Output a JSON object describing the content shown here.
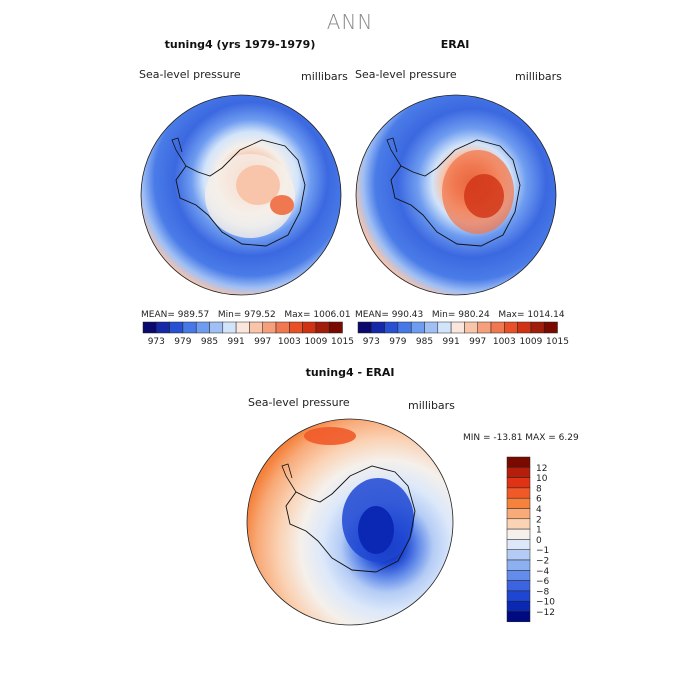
{
  "title": "ANN",
  "panels": [
    {
      "title": "tuning4 (yrs 1979-1979)",
      "variable": "Sea-level pressure",
      "units": "millibars",
      "stats": {
        "mean_label": "MEAN=",
        "mean": "989.57",
        "min_label": "Min=",
        "min": "979.52",
        "max_label": "Max=",
        "max": "1006.01"
      }
    },
    {
      "title": "ERAI",
      "variable": "Sea-level pressure",
      "units": "millibars",
      "stats": {
        "mean_label": "MEAN=",
        "mean": "990.43",
        "min_label": "Min=",
        "min": "980.24",
        "max_label": "Max=",
        "max": "1014.14"
      }
    },
    {
      "title": "tuning4 - ERAI",
      "variable": "Sea-level pressure",
      "units": "millibars",
      "stats_text": "MIN = -13.81 MAX =   6.29"
    }
  ],
  "colorbar_top": {
    "colors": [
      "#0a0a6e",
      "#1428a8",
      "#2850d2",
      "#4678e6",
      "#6e9cf0",
      "#a0c0f5",
      "#d2e4fa",
      "#fae6dc",
      "#f8c4aa",
      "#f5a07a",
      "#f07850",
      "#e85028",
      "#d03214",
      "#a01e0a",
      "#780a00"
    ],
    "tick_labels": [
      "973",
      "979",
      "985",
      "991",
      "997",
      "1003",
      "1009",
      "1015"
    ]
  },
  "colorbar_diff": {
    "colors": [
      "#780a00",
      "#b41e0a",
      "#e03214",
      "#f05a28",
      "#f5823c",
      "#f8aa78",
      "#fad2b4",
      "#f5f0eb",
      "#dce8fa",
      "#b4ccf5",
      "#8cb0f0",
      "#648cea",
      "#3c64e1",
      "#1e46d2",
      "#0a28b4",
      "#000a80"
    ],
    "tick_labels": [
      "12",
      "10",
      "8",
      "6",
      "4",
      "2",
      "1",
      "0",
      "−1",
      "−2",
      "−4",
      "−6",
      "−8",
      "−10",
      "−12"
    ]
  }
}
